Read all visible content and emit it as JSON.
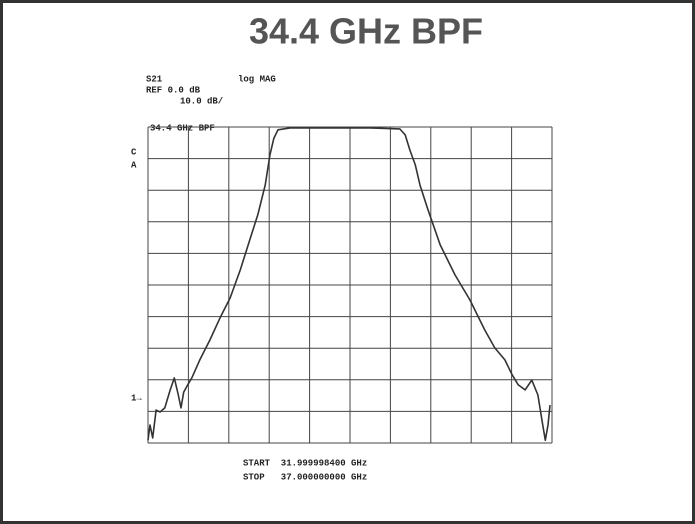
{
  "chart_data": {
    "type": "line",
    "title": "34.4 GHz BPF",
    "annotations": {
      "param": "S21",
      "format": "log MAG",
      "ref": "REF 0.0 dB",
      "scale": "10.0 dB/",
      "marker_label": "34.4 GHz BPF",
      "c": "C",
      "a": "A",
      "ref_pos": "1→",
      "start": "START  31.999998400 GHz",
      "stop": "STOP   37.000000000 GHz"
    },
    "xlim": [
      31,
      37
    ],
    "ylim": [
      -100,
      0
    ],
    "xticks": [
      31,
      31.6,
      32.2,
      32.8,
      33.4,
      34,
      34.6,
      35.2,
      35.8,
      36.4,
      37
    ],
    "yticks": [
      -100,
      -90,
      -80,
      -70,
      -60,
      -50,
      -40,
      -30,
      -20,
      -10,
      0
    ],
    "grid": true,
    "x": [
      31.0,
      31.03,
      31.07,
      31.12,
      31.18,
      31.25,
      31.33,
      31.39,
      31.45,
      31.49,
      31.53,
      31.59,
      31.65,
      31.77,
      31.92,
      32.07,
      32.22,
      32.37,
      32.51,
      32.63,
      32.74,
      32.81,
      32.87,
      32.93,
      33.11,
      33.7,
      34.3,
      34.74,
      34.82,
      34.89,
      34.97,
      35.04,
      35.16,
      35.34,
      35.56,
      35.78,
      36.0,
      36.15,
      36.3,
      36.41,
      36.5,
      36.6,
      36.7,
      36.79,
      36.85,
      36.9,
      36.94,
      36.97
    ],
    "series": [
      {
        "color": "#333333",
        "values": [
          -99.1,
          -94.3,
          -98.4,
          -89.6,
          -90.2,
          -88.9,
          -83.2,
          -79.4,
          -84.8,
          -88.9,
          -83.9,
          -81.6,
          -79.4,
          -73.7,
          -67.4,
          -60.4,
          -54.1,
          -45.3,
          -35.8,
          -27.8,
          -18.4,
          -8.9,
          -3.5,
          -0.9,
          -0.3,
          -0.3,
          -0.3,
          -0.6,
          -2.5,
          -7.3,
          -12.0,
          -18.4,
          -26.3,
          -37.3,
          -46.8,
          -54.7,
          -64.2,
          -69.9,
          -73.7,
          -78.5,
          -81.6,
          -83.2,
          -80.1,
          -84.8,
          -92.7,
          -99.1,
          -94.3,
          -88.0
        ]
      }
    ]
  }
}
